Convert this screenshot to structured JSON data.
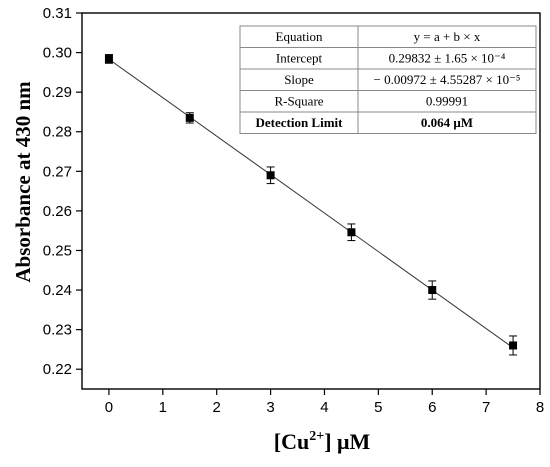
{
  "chart_data": {
    "type": "scatter",
    "xlabel_main": "[Cu",
    "xlabel_sup": "2+",
    "xlabel_tail": "] μM",
    "ylabel": "Absorbance at 430 nm",
    "xlim": [
      -0.5,
      8
    ],
    "ylim": [
      0.215,
      0.31
    ],
    "xticks": [
      "0",
      "1",
      "2",
      "3",
      "4",
      "5",
      "6",
      "7",
      "8"
    ],
    "yticks": [
      "0.22",
      "0.23",
      "0.24",
      "0.25",
      "0.26",
      "0.27",
      "0.28",
      "0.29",
      "0.30",
      "0.31"
    ],
    "points": [
      {
        "x": 0,
        "y": 0.2984,
        "err": 0.0011
      },
      {
        "x": 1.5,
        "y": 0.2835,
        "err": 0.0013
      },
      {
        "x": 3,
        "y": 0.269,
        "err": 0.0021
      },
      {
        "x": 4.5,
        "y": 0.2546,
        "err": 0.0021
      },
      {
        "x": 6,
        "y": 0.24,
        "err": 0.0023
      },
      {
        "x": 7.5,
        "y": 0.226,
        "err": 0.0024
      }
    ],
    "fit": {
      "intercept": 0.29832,
      "slope": -0.00972,
      "x_range": [
        0,
        7.5
      ]
    },
    "table": [
      {
        "label": "Equation",
        "value": "y = a + b × x",
        "bold": false
      },
      {
        "label": "Intercept",
        "value": "0.29832 ± 1.65 × 10⁻⁴",
        "bold": false
      },
      {
        "label": "Slope",
        "value": "− 0.00972 ± 4.55287 × 10⁻⁵",
        "bold": false
      },
      {
        "label": "R-Square",
        "value": "0.99991",
        "bold": false
      },
      {
        "label": "Detection Limit",
        "value": "0.064 μM",
        "bold": true
      }
    ]
  }
}
